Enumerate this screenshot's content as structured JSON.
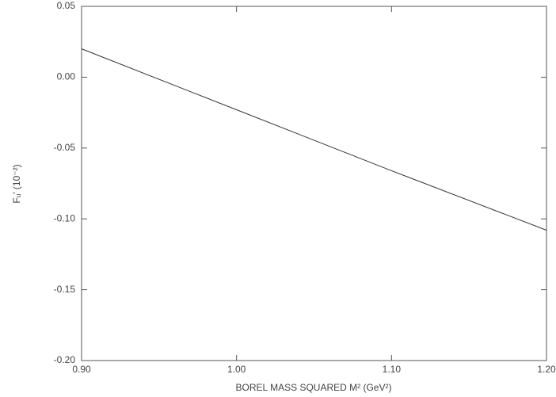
{
  "chart_data": {
    "type": "line",
    "x_label": "BOREL MASS SQUARED M² (GeV²)",
    "y_label": "Fᵤ' (10⁻²)",
    "x": [
      0.9,
      1.0,
      1.1,
      1.2
    ],
    "series": [
      {
        "name": "Fu",
        "color": "#333333",
        "values": [
          0.02,
          -0.023,
          -0.066,
          -0.108
        ]
      }
    ],
    "xlim": [
      0.9,
      1.2
    ],
    "ylim": [
      -0.2,
      0.05
    ],
    "xticks": [
      {
        "value": 0.9,
        "label": "0.90"
      },
      {
        "value": 1.0,
        "label": "1.00"
      },
      {
        "value": 1.1,
        "label": "1.10"
      },
      {
        "value": 1.2,
        "label": "1.20"
      }
    ],
    "yticks": [
      {
        "value": 0.05,
        "label": "0.05"
      },
      {
        "value": 0.0,
        "label": "0.00"
      },
      {
        "value": -0.05,
        "label": "-0.05"
      },
      {
        "value": -0.1,
        "label": "-0.10"
      },
      {
        "value": -0.15,
        "label": "-0.15"
      },
      {
        "value": -0.2,
        "label": "-0.20"
      }
    ]
  }
}
